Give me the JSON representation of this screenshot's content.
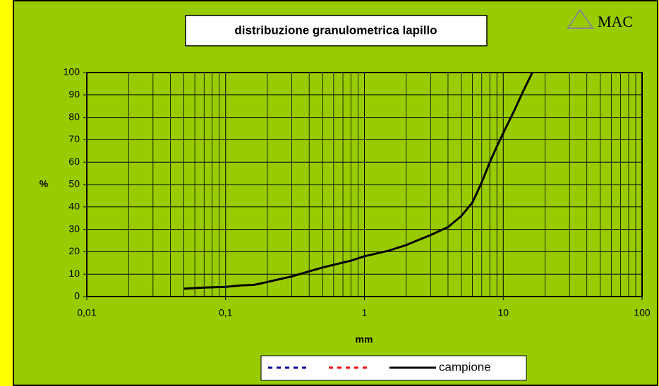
{
  "logo": "MAC",
  "chart_data": {
    "type": "line",
    "title": "distribuzione granulometrica lapillo",
    "xlabel": "mm",
    "ylabel": "%",
    "xscale": "log",
    "xlim": [
      0.01,
      100
    ],
    "xticks": [
      {
        "value": 0.01,
        "label": "0,01"
      },
      {
        "value": 0.1,
        "label": "0,1"
      },
      1,
      10,
      100
    ],
    "xminorticks": [
      0.02,
      0.03,
      0.04,
      0.05,
      0.06,
      0.07,
      0.08,
      0.09,
      0.2,
      0.3,
      0.4,
      0.5,
      0.6,
      0.7,
      0.8,
      0.9,
      2,
      3,
      4,
      5,
      6,
      7,
      8,
      9,
      20,
      30,
      40,
      50,
      60,
      70,
      80,
      90
    ],
    "ylim": [
      0,
      100
    ],
    "yticks": [
      0,
      10,
      20,
      30,
      40,
      50,
      60,
      70,
      80,
      90,
      100
    ],
    "grid": true,
    "legend": "bottom",
    "x": [
      0.05,
      0.07,
      0.1,
      0.13,
      0.16,
      0.2,
      0.3,
      0.5,
      0.8,
      1,
      1.5,
      2,
      3,
      4,
      5,
      6,
      7,
      8,
      9,
      10,
      12,
      14,
      16.2
    ],
    "series": [
      {
        "color": "#000099",
        "dash": true,
        "values": [
          null,
          null,
          null,
          null,
          null,
          null,
          null,
          null,
          null,
          null,
          null,
          null,
          null,
          null,
          null,
          null,
          null,
          null,
          null,
          null,
          null,
          null,
          null
        ]
      },
      {
        "color": "#ff0000",
        "dash": true,
        "values": [
          null,
          null,
          null,
          null,
          null,
          null,
          null,
          null,
          null,
          null,
          null,
          null,
          null,
          null,
          null,
          null,
          null,
          null,
          null,
          null,
          null,
          null,
          null
        ]
      },
      {
        "name": "campione",
        "color": "#000000",
        "dash": false,
        "values": [
          3.5,
          4,
          4.3,
          5,
          5.2,
          6.5,
          9,
          13,
          16,
          18,
          20.5,
          23,
          27.5,
          31,
          36,
          42,
          51,
          60,
          67,
          73,
          83,
          92,
          100
        ]
      }
    ]
  }
}
